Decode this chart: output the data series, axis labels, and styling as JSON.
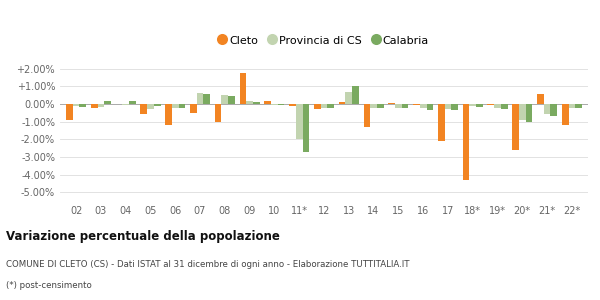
{
  "categories": [
    "02",
    "03",
    "04",
    "05",
    "06",
    "07",
    "08",
    "09",
    "10",
    "11*",
    "12",
    "13",
    "14",
    "15",
    "16",
    "17",
    "18*",
    "19*",
    "20*",
    "21*",
    "22*"
  ],
  "cleto": [
    -0.9,
    -0.2,
    0.0,
    -0.55,
    -1.2,
    -0.5,
    -1.0,
    1.75,
    0.15,
    -0.1,
    -0.3,
    0.12,
    -1.3,
    0.05,
    -0.05,
    -2.1,
    -4.3,
    -0.05,
    -2.6,
    0.55,
    -1.2
  ],
  "provincia": [
    -0.1,
    -0.15,
    -0.05,
    -0.3,
    -0.22,
    0.6,
    0.5,
    0.15,
    -0.05,
    -2.0,
    -0.2,
    0.7,
    -0.2,
    -0.2,
    -0.25,
    -0.3,
    -0.1,
    -0.2,
    -0.9,
    -0.55,
    -0.2
  ],
  "calabria": [
    -0.15,
    0.2,
    0.15,
    -0.1,
    -0.22,
    0.55,
    0.45,
    0.12,
    -0.05,
    -2.7,
    -0.2,
    1.05,
    -0.2,
    -0.2,
    -0.35,
    -0.35,
    -0.15,
    -0.3,
    -1.0,
    -0.65,
    -0.25
  ],
  "color_cleto": "#f28422",
  "color_provincia": "#c2d4b0",
  "color_calabria": "#7aaa60",
  "ylim_min": -5.5,
  "ylim_max": 2.5,
  "yticks": [
    -5.0,
    -4.0,
    -3.0,
    -2.0,
    -1.0,
    0.0,
    1.0,
    2.0
  ],
  "ytick_labels": [
    "-5.00%",
    "-4.00%",
    "-3.00%",
    "-2.00%",
    "-1.00%",
    "0.00%",
    "+1.00%",
    "+2.00%"
  ],
  "title": "Variazione percentuale della popolazione",
  "subtitle": "COMUNE DI CLETO (CS) - Dati ISTAT al 31 dicembre di ogni anno - Elaborazione TUTTITALIA.IT",
  "footnote": "(*) post-censimento",
  "legend_labels": [
    "Cleto",
    "Provincia di CS",
    "Calabria"
  ],
  "bar_width": 0.27
}
